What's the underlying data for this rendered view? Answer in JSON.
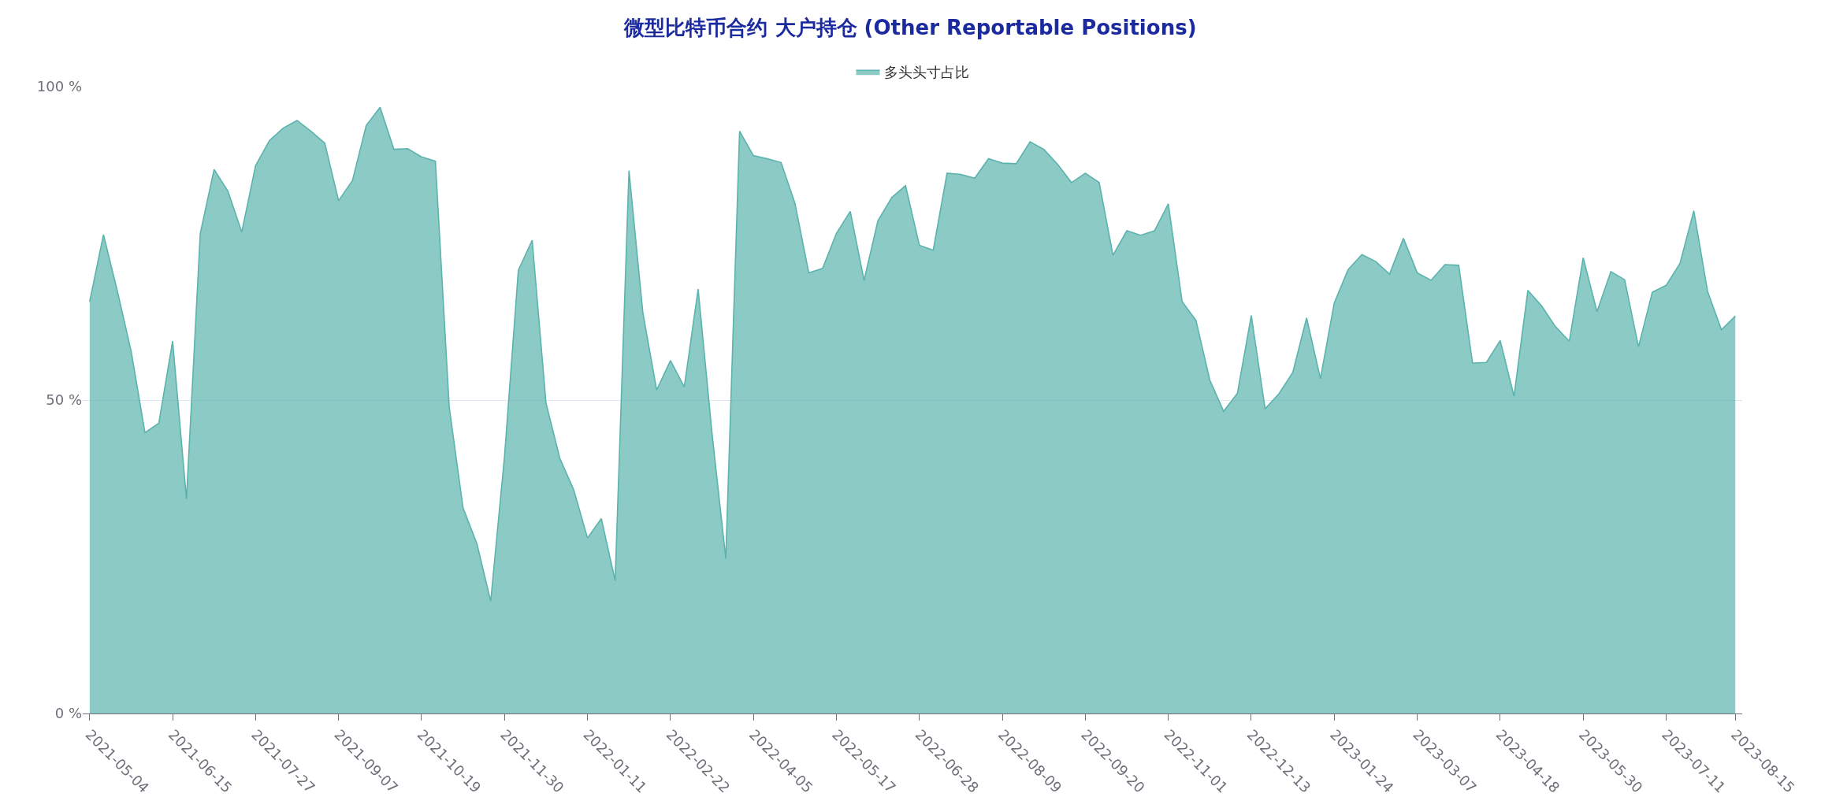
{
  "chart_data": {
    "type": "area",
    "title": "微型比特币合约 大户持仓 (Other Reportable Positions)",
    "categories": [
      "2021-05-04",
      null,
      null,
      null,
      null,
      null,
      "2021-06-15",
      null,
      null,
      null,
      null,
      null,
      "2021-07-27",
      null,
      null,
      null,
      null,
      null,
      "2021-09-07",
      null,
      null,
      null,
      null,
      null,
      "2021-10-19",
      null,
      null,
      null,
      null,
      null,
      "2021-11-30",
      null,
      null,
      null,
      null,
      null,
      "2022-01-11",
      null,
      null,
      null,
      null,
      null,
      "2022-02-22",
      null,
      null,
      null,
      null,
      null,
      "2022-04-05",
      null,
      null,
      null,
      null,
      null,
      "2022-05-17",
      null,
      null,
      null,
      null,
      null,
      "2022-06-28",
      null,
      null,
      null,
      null,
      null,
      "2022-08-09",
      null,
      null,
      null,
      null,
      null,
      "2022-09-20",
      null,
      null,
      null,
      null,
      null,
      "2022-11-01",
      null,
      null,
      null,
      null,
      null,
      "2022-12-13",
      null,
      null,
      null,
      null,
      null,
      "2023-01-24",
      null,
      null,
      null,
      null,
      null,
      "2023-03-07",
      null,
      null,
      null,
      null,
      null,
      "2023-04-18",
      null,
      null,
      null,
      null,
      null,
      "2023-05-30",
      null,
      null,
      null,
      null,
      null,
      "2023-07-11",
      null,
      null,
      null,
      null,
      "2023-08-15"
    ],
    "series": [
      {
        "name": "多头头寸占比",
        "color": "#5bb3ae",
        "values": [
          65.7,
          76.4,
          67.4,
          57.8,
          44.8,
          46.3,
          59.4,
          34.2,
          76.6,
          86.8,
          83.3,
          76.8,
          87.4,
          91.4,
          93.4,
          94.6,
          92.9,
          91.0,
          81.8,
          85.0,
          93.8,
          96.7,
          90.0,
          90.1,
          88.8,
          88.1,
          48.9,
          32.8,
          27.1,
          17.9,
          41.0,
          70.7,
          75.5,
          49.5,
          40.7,
          35.7,
          28.0,
          31.1,
          21.2,
          86.6,
          64.0,
          51.6,
          56.3,
          52.1,
          67.7,
          44.8,
          24.7,
          92.9,
          89.0,
          88.5,
          87.9,
          81.4,
          70.3,
          71.0,
          76.6,
          80.1,
          69.1,
          78.6,
          82.3,
          84.2,
          74.7,
          73.9,
          86.2,
          86.0,
          85.4,
          88.5,
          87.8,
          87.7,
          91.2,
          90.0,
          87.6,
          84.7,
          86.2,
          84.7,
          73.1,
          77.0,
          76.3,
          77.0,
          81.3,
          65.7,
          62.7,
          53.2,
          48.2,
          51.1,
          63.5,
          48.6,
          51.0,
          54.4,
          63.1,
          53.4,
          65.5,
          70.8,
          73.2,
          72.1,
          70.1,
          75.8,
          70.3,
          69.1,
          71.6,
          71.5,
          55.9,
          56.0,
          59.5,
          50.6,
          67.5,
          65.0,
          61.7,
          59.4,
          72.7,
          64.1,
          70.5,
          69.2,
          58.5,
          67.2,
          68.3,
          71.8,
          80.2,
          67.3,
          61.2,
          63.4
        ]
      }
    ],
    "ylim": [
      0,
      100
    ],
    "yticks": [
      {
        "value": 0,
        "label": "0 %"
      },
      {
        "value": 50,
        "label": "50 %"
      },
      {
        "value": 100,
        "label": "100 %"
      }
    ],
    "grid": "y",
    "legend": "top"
  }
}
